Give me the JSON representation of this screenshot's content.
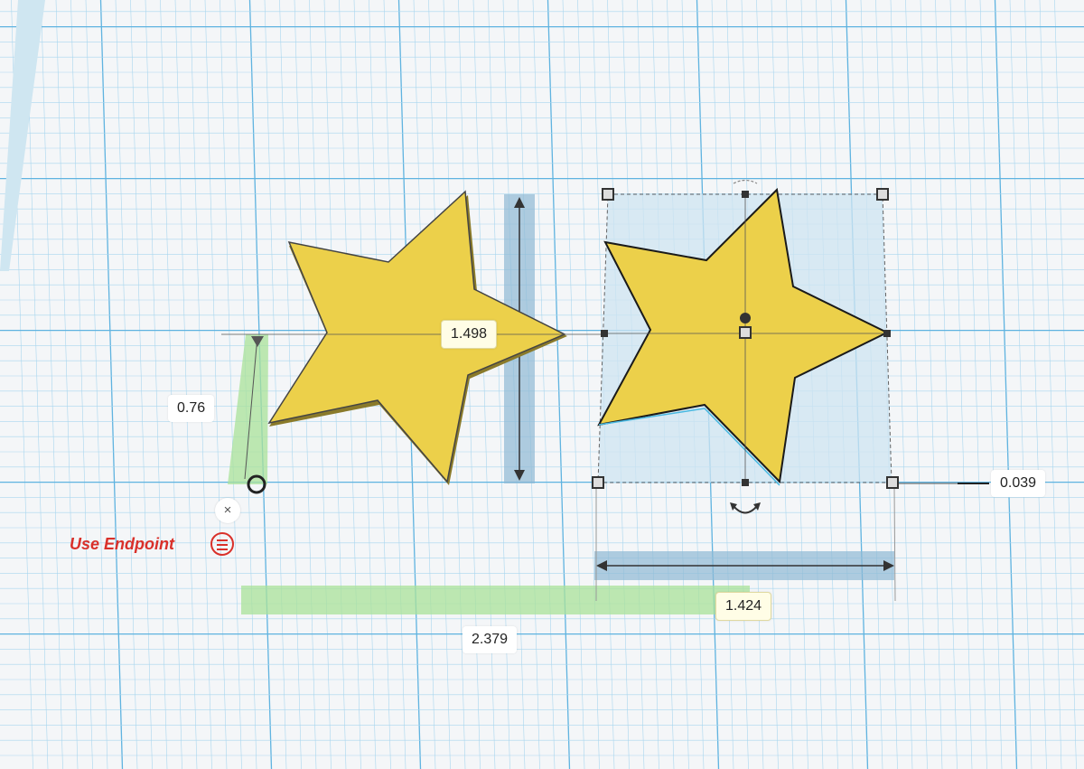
{
  "dimensions": {
    "height_left": "0.76",
    "star_height": "1.498",
    "elevation": "0.039",
    "star_width": "1.424",
    "distance_x": "2.379"
  },
  "snap": {
    "label": "Use Endpoint",
    "close_symbol": "×"
  },
  "colors": {
    "star": "#ecd04a",
    "grid": "#8ccbe8",
    "selection": "#cfe5f2",
    "ruler_green": "#a9e29a",
    "ruler_blue": "#8fb9d4",
    "accent_red": "#d9302a"
  }
}
